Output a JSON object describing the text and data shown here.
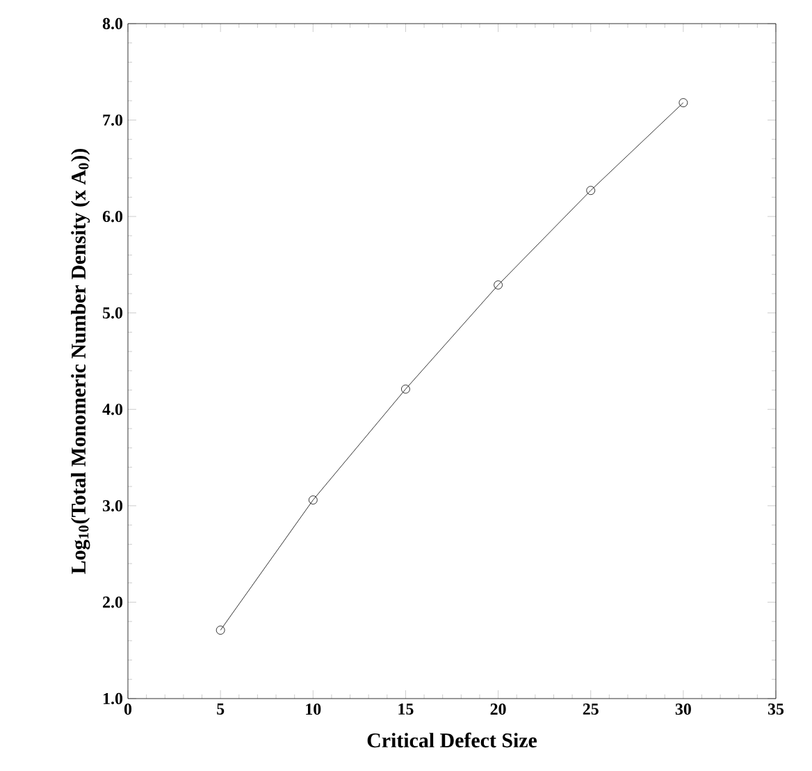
{
  "chart_data": {
    "type": "line",
    "xlabel": "Critical Defect Size",
    "ylabel": "Log$_{10}$(Total Monomeric Number Density (x A$_{0}$))",
    "x": [
      5,
      10,
      15,
      20,
      25,
      30
    ],
    "values": [
      1.71,
      3.06,
      4.21,
      5.29,
      6.27,
      7.18
    ],
    "color": "#000000",
    "marker": "circle",
    "line_style": "solid",
    "xlim": [
      0,
      35
    ],
    "xticks": [
      0,
      5,
      10,
      15,
      20,
      25,
      30,
      35
    ],
    "ylim": [
      1,
      8
    ],
    "yticks": [
      {
        "value": 1,
        "label": "1.0"
      },
      {
        "value": 2,
        "label": "2.0"
      },
      {
        "value": 3,
        "label": "3.0"
      },
      {
        "value": 4,
        "label": "4.0"
      },
      {
        "value": 5,
        "label": "5.0"
      },
      {
        "value": 6,
        "label": "6.0"
      },
      {
        "value": 7,
        "label": "7.0"
      },
      {
        "value": 8,
        "label": "8.0"
      }
    ]
  }
}
